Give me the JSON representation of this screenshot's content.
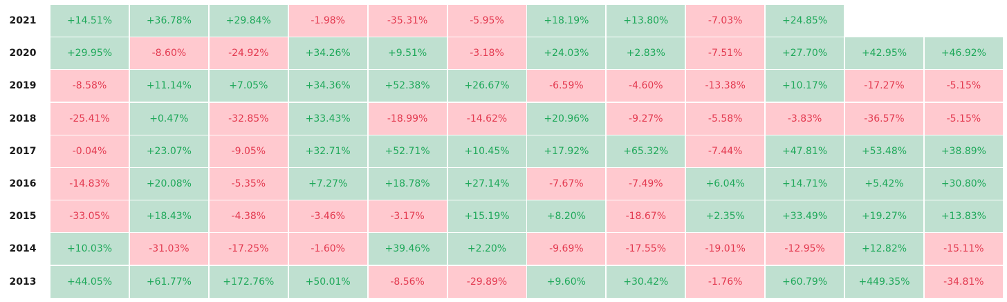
{
  "colors": {
    "positive_bg": "#bfe0d0",
    "positive_text": "#1fa85a",
    "negative_bg": "#ffc9cf",
    "negative_text": "#e33a50"
  },
  "chart_data": {
    "type": "heatmap",
    "years": [
      "2021",
      "2020",
      "2019",
      "2018",
      "2017",
      "2016",
      "2015",
      "2014",
      "2013"
    ],
    "rows": [
      {
        "year": "2021",
        "values": [
          "+14.51%",
          "+36.78%",
          "+29.84%",
          "-1.98%",
          "-35.31%",
          "-5.95%",
          "+18.19%",
          "+13.80%",
          "-7.03%",
          "+24.85%"
        ]
      },
      {
        "year": "2020",
        "values": [
          "+29.95%",
          "-8.60%",
          "-24.92%",
          "+34.26%",
          "+9.51%",
          "-3.18%",
          "+24.03%",
          "+2.83%",
          "-7.51%",
          "+27.70%",
          "+42.95%",
          "+46.92%"
        ]
      },
      {
        "year": "2019",
        "values": [
          "-8.58%",
          "+11.14%",
          "+7.05%",
          "+34.36%",
          "+52.38%",
          "+26.67%",
          "-6.59%",
          "-4.60%",
          "-13.38%",
          "+10.17%",
          "-17.27%",
          "-5.15%"
        ]
      },
      {
        "year": "2018",
        "values": [
          "-25.41%",
          "+0.47%",
          "-32.85%",
          "+33.43%",
          "-18.99%",
          "-14.62%",
          "+20.96%",
          "-9.27%",
          "-5.58%",
          "-3.83%",
          "-36.57%",
          "-5.15%"
        ]
      },
      {
        "year": "2017",
        "values": [
          "-0.04%",
          "+23.07%",
          "-9.05%",
          "+32.71%",
          "+52.71%",
          "+10.45%",
          "+17.92%",
          "+65.32%",
          "-7.44%",
          "+47.81%",
          "+53.48%",
          "+38.89%"
        ]
      },
      {
        "year": "2016",
        "values": [
          "-14.83%",
          "+20.08%",
          "-5.35%",
          "+7.27%",
          "+18.78%",
          "+27.14%",
          "-7.67%",
          "-7.49%",
          "+6.04%",
          "+14.71%",
          "+5.42%",
          "+30.80%"
        ]
      },
      {
        "year": "2015",
        "values": [
          "-33.05%",
          "+18.43%",
          "-4.38%",
          "-3.46%",
          "-3.17%",
          "+15.19%",
          "+8.20%",
          "-18.67%",
          "+2.35%",
          "+33.49%",
          "+19.27%",
          "+13.83%"
        ]
      },
      {
        "year": "2014",
        "values": [
          "+10.03%",
          "-31.03%",
          "-17.25%",
          "-1.60%",
          "+39.46%",
          "+2.20%",
          "-9.69%",
          "-17.55%",
          "-19.01%",
          "-12.95%",
          "+12.82%",
          "-15.11%"
        ]
      },
      {
        "year": "2013",
        "values": [
          "+44.05%",
          "+61.77%",
          "+172.76%",
          "+50.01%",
          "-8.56%",
          "-29.89%",
          "+9.60%",
          "+30.42%",
          "-1.76%",
          "+60.79%",
          "+449.35%",
          "-34.81%"
        ]
      }
    ]
  }
}
